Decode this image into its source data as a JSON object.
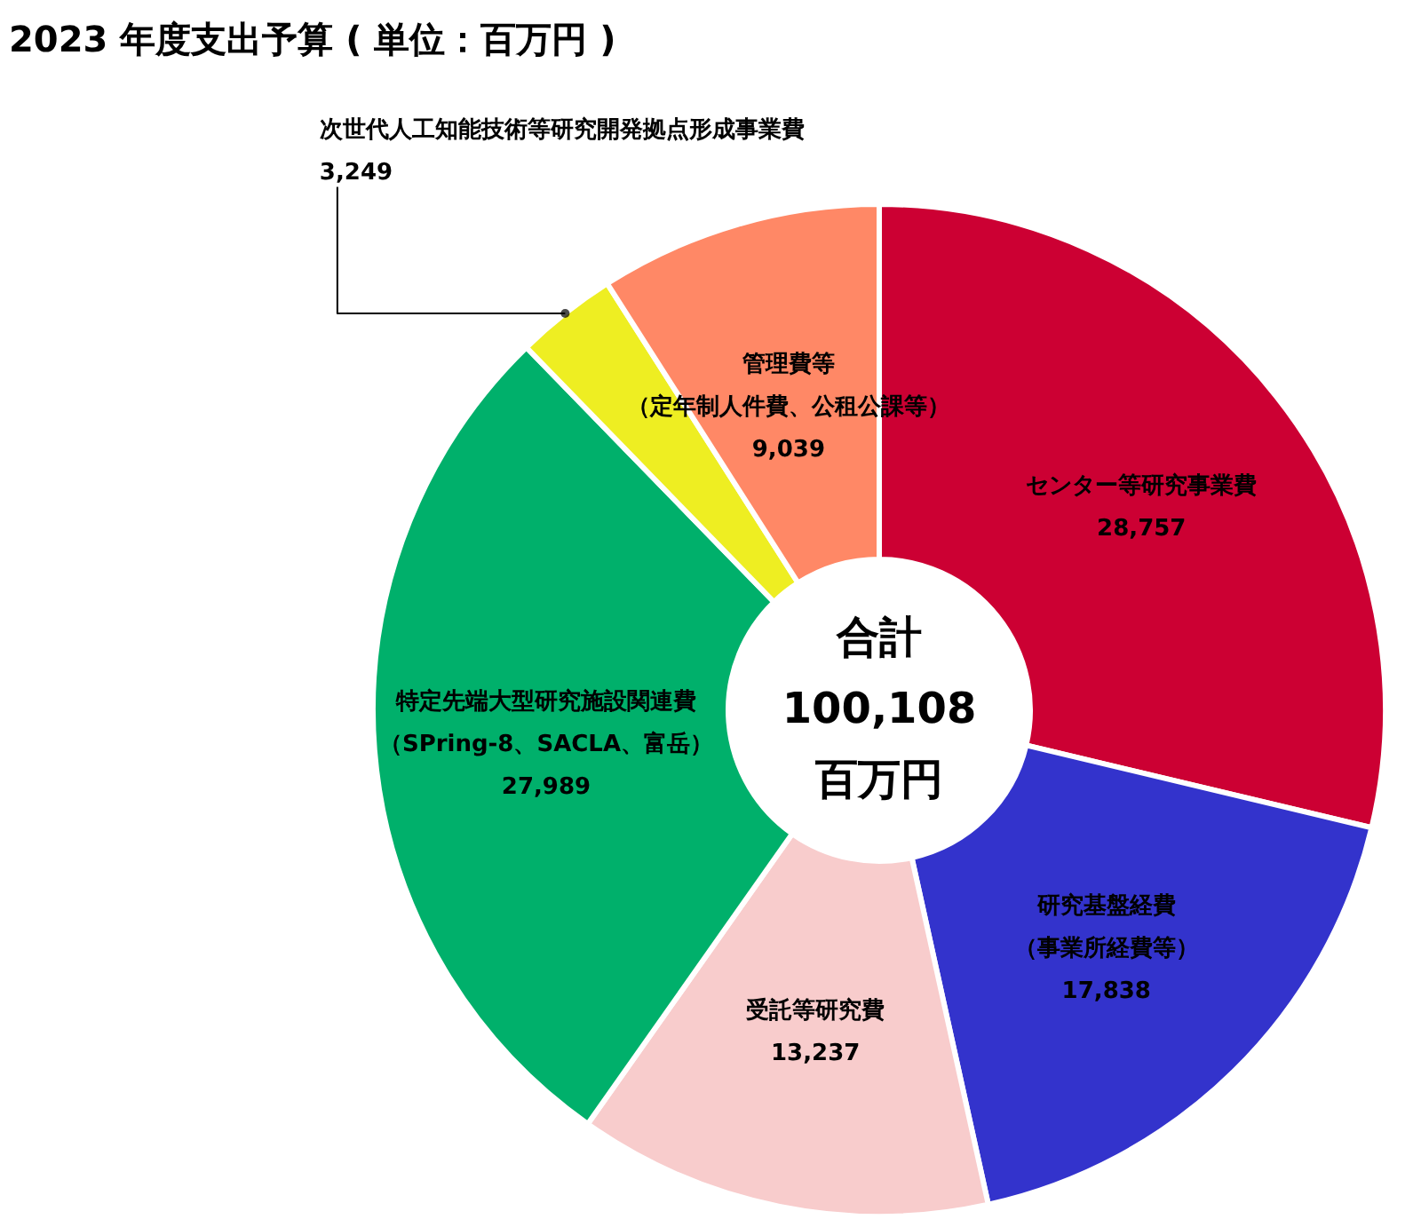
{
  "chart_data": {
    "type": "donut",
    "title": "2023 年度支出予算 ( 単位：百万円 )",
    "categories": [
      "センター等研究事業費",
      "研究基盤経費（事業所経費等）",
      "受託等研究費",
      "特定先端大型研究施設関連費（SPring-8、SACLA、富岳）",
      "次世代人工知能技術等研究開発拠点形成事業費",
      "管理費等（定年制人件費、公租公課等）"
    ],
    "value_labels": [
      "28,757",
      "17,838",
      "13,237",
      "27,989",
      "3,249",
      "9,039"
    ],
    "values": [
      28757,
      17838,
      13237,
      27989,
      3249,
      9039
    ],
    "colors": [
      "#cc0033",
      "#3333cc",
      "#f8cccc",
      "#00b06b",
      "#eeee22",
      "#ff8866"
    ],
    "legend": false,
    "annotations": [
      "合計",
      "100,108",
      "百万円"
    ]
  }
}
